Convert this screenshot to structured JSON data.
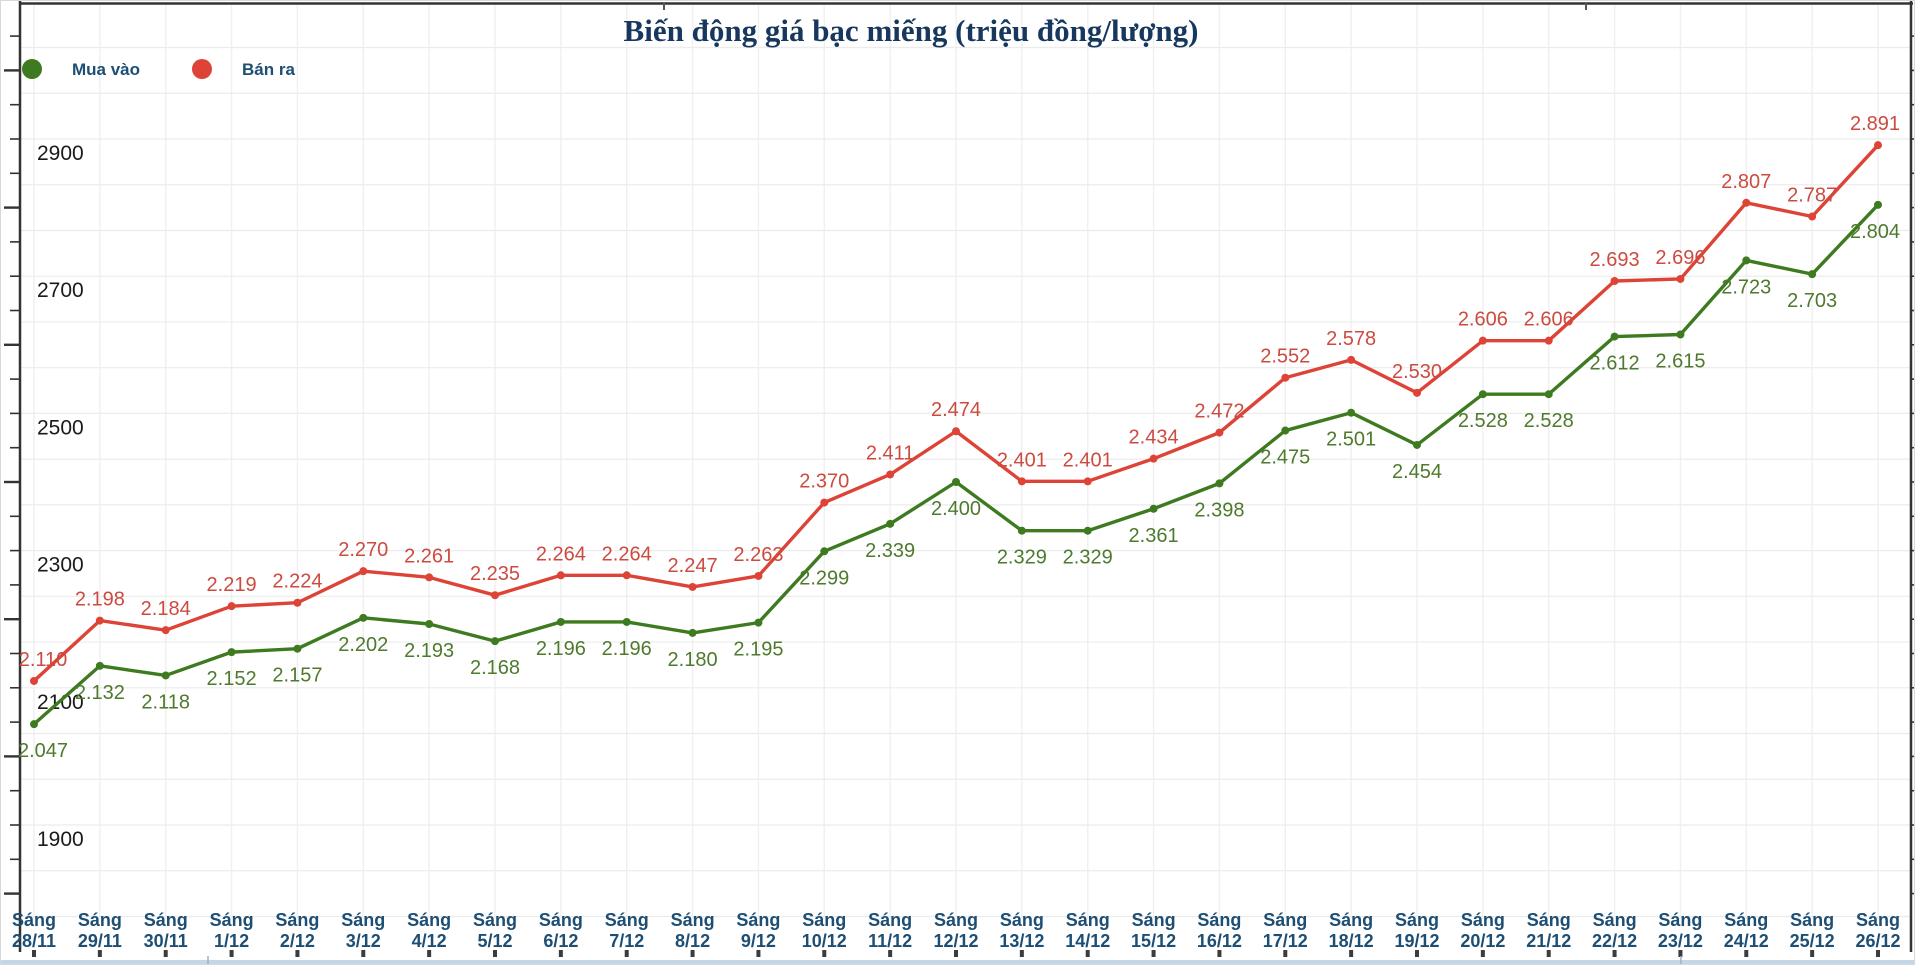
{
  "title": "Biến động giá bạc miếng (triệu đồng/lượng)",
  "colors": {
    "title_text": "#17375e",
    "axis_text": "#1a1a1a",
    "date_text": "#1d4e74",
    "buy_line": "#3e7a1f",
    "buy_label": "#4e7a2d",
    "sell_line": "#dd4336",
    "sell_label": "#cc4b40",
    "grid_major": "#c9c9c9",
    "grid_minor": "#ececec",
    "grid_vertical": "#f0f0f0",
    "frame": "#333333",
    "bottom_strip": "#c3d7e9"
  },
  "legend": {
    "items": [
      {
        "label": "Mua vào"
      },
      {
        "label": "Bán ra"
      }
    ]
  },
  "chart_data": {
    "type": "line",
    "title": "Biến động giá bạc miếng (triệu đồng/lượng)",
    "x_prefix": "Sáng",
    "categories": [
      "28/11",
      "29/11",
      "30/11",
      "1/12",
      "2/12",
      "3/12",
      "4/12",
      "5/12",
      "6/12",
      "7/12",
      "8/12",
      "9/12",
      "10/12",
      "11/12",
      "12/12",
      "13/12",
      "14/12",
      "15/12",
      "16/12",
      "17/12",
      "18/12",
      "19/12",
      "20/12",
      "21/12",
      "22/12",
      "23/12",
      "24/12",
      "25/12",
      "26/12"
    ],
    "series": [
      {
        "name": "Mua vào",
        "color": "#3e7a1f",
        "label_color": "#4e7a2d",
        "label_position": "below",
        "values": [
          2047,
          2132,
          2118,
          2152,
          2157,
          2202,
          2193,
          2168,
          2196,
          2196,
          2180,
          2195,
          2299,
          2339,
          2400,
          2329,
          2329,
          2361,
          2398,
          2475,
          2501,
          2454,
          2528,
          2528,
          2612,
          2615,
          2723,
          2703,
          2804
        ]
      },
      {
        "name": "Bán ra",
        "color": "#dd4336",
        "label_color": "#cc4b40",
        "label_position": "above",
        "values": [
          2110,
          2198,
          2184,
          2219,
          2224,
          2270,
          2261,
          2235,
          2264,
          2264,
          2247,
          2263,
          2370,
          2411,
          2474,
          2401,
          2401,
          2434,
          2472,
          2552,
          2578,
          2530,
          2606,
          2606,
          2693,
          2696,
          2807,
          2787,
          2891
        ]
      }
    ],
    "y_axis": {
      "ticks": [
        2900,
        2700,
        2500,
        2300,
        2100,
        1900
      ],
      "min": 1900,
      "max": 2900,
      "minor_gridlines_between_major": 2
    },
    "value_label_format": "dot-thousands (e.g. 2047 -> 2.047)",
    "grid": true,
    "legend_position": "top-left"
  }
}
